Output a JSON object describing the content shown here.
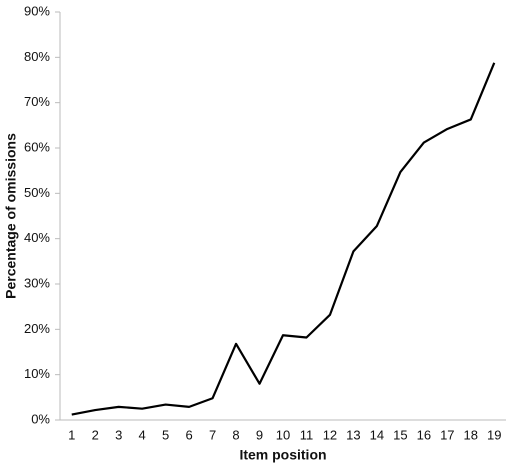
{
  "chart_data": {
    "type": "line",
    "x_label": "Item position",
    "y_label": "Percentage of omissions",
    "categories": [
      "1",
      "2",
      "3",
      "4",
      "5",
      "6",
      "7",
      "8",
      "9",
      "10",
      "11",
      "12",
      "13",
      "14",
      "15",
      "16",
      "17",
      "18",
      "19"
    ],
    "values": [
      1.2,
      2.2,
      2.9,
      2.5,
      3.4,
      2.9,
      4.8,
      16.8,
      8,
      18.7,
      18.2,
      23.2,
      37.2,
      42.8,
      54.7,
      61.2,
      64.2,
      66.3,
      78.8
    ],
    "color": "#000000",
    "ylim": [
      0,
      90
    ],
    "yticks": [
      {
        "value": 0,
        "label": "0%"
      },
      {
        "value": 10,
        "label": "10%"
      },
      {
        "value": 20,
        "label": "20%"
      },
      {
        "value": 30,
        "label": "30%"
      },
      {
        "value": 40,
        "label": "40%"
      },
      {
        "value": 50,
        "label": "50%"
      },
      {
        "value": 60,
        "label": "60%"
      },
      {
        "value": 70,
        "label": "70%"
      },
      {
        "value": 80,
        "label": "80%"
      },
      {
        "value": 90,
        "label": "90%"
      }
    ],
    "grid": false
  }
}
